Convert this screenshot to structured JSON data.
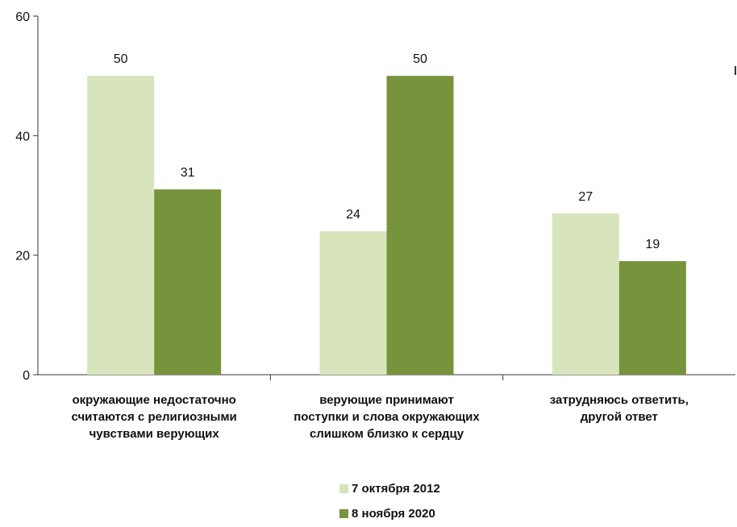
{
  "chart_data": {
    "type": "bar",
    "categories": [
      "окружающие недостаточно\nсчитаются с религиозными\nчувствами верующих",
      "верующие принимают\nпоступки и слова окружающих\nслишком близко к сердцу",
      "затрудняюсь ответить,\nдругой ответ"
    ],
    "series": [
      {
        "name": "7 октября 2012",
        "values": [
          50,
          24,
          27
        ],
        "color": "#d8e4bc"
      },
      {
        "name": "8 ноября 2020",
        "values": [
          31,
          50,
          19
        ],
        "color": "#77933c"
      }
    ],
    "data_labels": [
      [
        "50",
        "24",
        "27"
      ],
      [
        "31",
        "50",
        "19"
      ]
    ],
    "y_ticks": [
      "0",
      "20",
      "40",
      "60"
    ],
    "ylim": [
      0,
      60
    ],
    "grid": false,
    "legend_position": "bottom-center",
    "title": "",
    "xlabel": "",
    "ylabel": ""
  }
}
